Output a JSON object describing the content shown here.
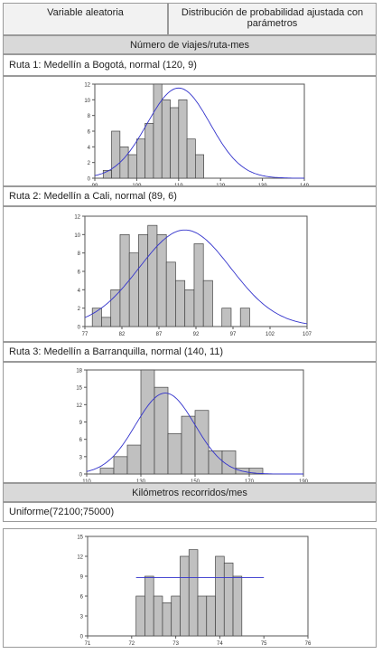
{
  "table": {
    "col1_header": "Variable aleatoria",
    "col2_header": "Distribución de probabilidad ajustada con parámetros",
    "section1": "Número de viajes/ruta-mes",
    "route1_label": "Ruta 1: Medellín a Bogotá, normal (120, 9)",
    "route2_label": "Ruta 2: Medellín a Cali, normal (89, 6)",
    "route3_label": "Ruta 3: Medellín a Barranquilla, normal (140, 11)",
    "section2": "Kilómetros recorridos/mes",
    "uniform_label": "Uniforme(72100;75000)"
  },
  "colors": {
    "bar": "#c0c0c0",
    "bar_edge": "#444444",
    "curve": "#3333cc"
  },
  "chart_data": [
    {
      "type": "bar",
      "fit": "normal",
      "xlim": [
        99,
        149
      ],
      "ylim": [
        0,
        12
      ],
      "xticks": [
        99,
        109,
        119,
        129,
        139,
        149
      ],
      "yticks": [
        0,
        2,
        4,
        6,
        8,
        10,
        12
      ],
      "bin_start": 101,
      "bin_width": 2,
      "values": [
        1,
        6,
        4,
        3,
        5,
        7,
        12,
        10,
        9,
        10,
        5,
        3
      ],
      "curve": {
        "mean": 119,
        "sd": 7.5,
        "peak": 11.5
      }
    },
    {
      "type": "bar",
      "fit": "normal",
      "xlim": [
        77,
        107
      ],
      "ylim": [
        0,
        12
      ],
      "xticks": [
        77,
        82,
        87,
        92,
        97,
        102,
        107
      ],
      "yticks": [
        0,
        2,
        4,
        6,
        8,
        10,
        12
      ],
      "bin_start": 78,
      "bin_width": 1.25,
      "values": [
        2,
        1,
        4,
        10,
        8,
        10,
        11,
        10,
        7,
        5,
        4,
        9,
        5,
        0,
        2,
        0,
        2
      ],
      "curve": {
        "mean": 90.5,
        "sd": 6.2,
        "peak": 10.5
      }
    },
    {
      "type": "bar",
      "fit": "normal",
      "xlim": [
        110,
        190
      ],
      "ylim": [
        0,
        18
      ],
      "xticks": [
        110,
        130,
        150,
        170,
        190
      ],
      "yticks": [
        0,
        3,
        6,
        9,
        12,
        15,
        18
      ],
      "bin_start": 115,
      "bin_width": 5,
      "values": [
        1,
        3,
        5,
        18,
        15,
        7,
        10,
        11,
        4,
        4,
        1,
        1
      ],
      "curve": {
        "mean": 139,
        "sd": 11,
        "peak": 14
      }
    },
    {
      "type": "bar",
      "fit": "uniform",
      "xlim": [
        71,
        76
      ],
      "ylim": [
        0,
        15
      ],
      "xticks": [
        71,
        72,
        73,
        74,
        75,
        76
      ],
      "yticks": [
        0,
        3,
        6,
        9,
        12,
        15
      ],
      "bin_start": 72.1,
      "bin_width": 0.2,
      "values": [
        6,
        9,
        6,
        5,
        6,
        12,
        13,
        6,
        6,
        12,
        11,
        9
      ],
      "curve": {
        "level": 8.8,
        "from": 72.1,
        "to": 75.0
      }
    }
  ]
}
